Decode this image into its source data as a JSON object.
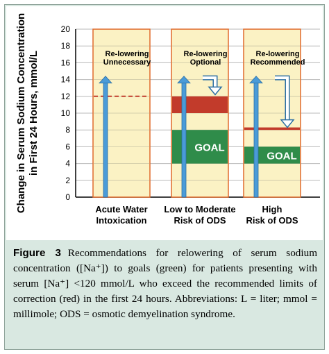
{
  "chart_data": {
    "type": "bar",
    "ylabel_line1": "Change in Serum Sodium Concentration",
    "ylabel_line2": "in First 24 Hours, mmol/L",
    "ylim": [
      0,
      20
    ],
    "yticks": [
      0,
      2,
      4,
      6,
      8,
      10,
      12,
      14,
      16,
      18,
      20
    ],
    "grid": true,
    "categories": [
      {
        "label_line1": "Acute Water",
        "label_line2": "Intoxication",
        "text_line1": "Re-lowering",
        "text_line2": "Unnecessary",
        "arrow_top": 14.4,
        "dashed_limit": 12,
        "red_band": null,
        "goal_band": null,
        "goal_label": "",
        "down_arrow": null
      },
      {
        "label_line1": "Low to Moderate",
        "label_line2": "Risk of ODS",
        "text_line1": "Re-lowering",
        "text_line2": "Optional",
        "arrow_top": 14.4,
        "dashed_limit": null,
        "red_band": [
          10,
          12
        ],
        "goal_band": [
          4,
          8
        ],
        "goal_label": "GOAL",
        "down_arrow": {
          "from": 14.2,
          "to": 12.2
        }
      },
      {
        "label_line1": "High",
        "label_line2": "Risk of ODS",
        "text_line1": "Re-lowering",
        "text_line2": "Recommended",
        "arrow_top": 14.4,
        "dashed_limit": null,
        "red_band": [
          8,
          8.3
        ],
        "goal_band": [
          4,
          6
        ],
        "goal_label": "GOAL",
        "down_arrow": {
          "from": 14.2,
          "to": 8.3
        }
      }
    ]
  },
  "colors": {
    "panel_fill": "#fbf2c4",
    "panel_border": "#e06a2c",
    "goal": "#2f8c4a",
    "red_limit": "#c23b2b",
    "arrow": "#4a9bd8",
    "caption_bg": "#d9e8e1"
  },
  "caption": {
    "figure_label": "Figure 3",
    "text": "Recommendations for relowering of serum sodium concentration ([Na⁺]) to goals (green) for patients presenting with serum [Na⁺] <120 mmol/L who exceed the recommended limits of correction (red) in the first 24 hours. Abbreviations: L = liter; mmol = millimole; ODS = osmotic demyelination syndrome."
  }
}
